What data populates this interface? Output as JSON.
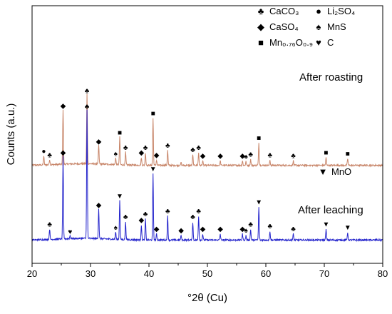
{
  "chart_data": {
    "type": "line",
    "title": "",
    "xlabel": "°2θ (Cu)",
    "ylabel": "Counts (a.u.)",
    "xlim": [
      20,
      80
    ],
    "xticks": [
      20,
      30,
      40,
      50,
      60,
      70,
      80
    ],
    "y_tick_labels_shown": false,
    "grid": false,
    "legend": {
      "placement": "top-right",
      "entries": [
        {
          "symbol": "club",
          "name": "CaCO₃"
        },
        {
          "symbol": "circle",
          "name": "Li₂SO₄"
        },
        {
          "symbol": "diamond",
          "name": "CaSO₄"
        },
        {
          "symbol": "spade",
          "name": "MnS"
        },
        {
          "symbol": "square",
          "name": "Mn₀.₇₆O₀.₉"
        },
        {
          "symbol": "heart",
          "name": "C"
        },
        {
          "symbol": "triangle-down",
          "name": "MnO"
        }
      ]
    },
    "series": [
      {
        "name": "After roasting",
        "color": "#c8866a",
        "baseline": 100,
        "peaks": [
          {
            "x": 22.0,
            "h": 12,
            "marker": "circle"
          },
          {
            "x": 23.0,
            "h": 7,
            "marker": "club"
          },
          {
            "x": 25.3,
            "h": 73,
            "marker": "diamond"
          },
          {
            "x": 29.4,
            "h": 93,
            "marker": "club"
          },
          {
            "x": 31.4,
            "h": 25,
            "marker": "diamond"
          },
          {
            "x": 34.3,
            "h": 9,
            "marker": "spade"
          },
          {
            "x": 35.0,
            "h": 37,
            "marker": "square"
          },
          {
            "x": 36.0,
            "h": 17,
            "marker": "club"
          },
          {
            "x": 38.7,
            "h": 10,
            "marker": "diamond"
          },
          {
            "x": 39.4,
            "h": 17,
            "marker": "club"
          },
          {
            "x": 40.7,
            "h": 63,
            "marker": "square"
          },
          {
            "x": 41.3,
            "h": 7,
            "marker": "diamond"
          },
          {
            "x": 43.2,
            "h": 20,
            "marker": "club"
          },
          {
            "x": 45.5,
            "h": 4,
            "marker": null
          },
          {
            "x": 47.5,
            "h": 14,
            "marker": "club"
          },
          {
            "x": 48.5,
            "h": 17,
            "marker": "club"
          },
          {
            "x": 49.2,
            "h": 6,
            "marker": "diamond"
          },
          {
            "x": 52.2,
            "h": 6,
            "marker": "diamond"
          },
          {
            "x": 56.0,
            "h": 6,
            "marker": "diamond"
          },
          {
            "x": 56.6,
            "h": 5,
            "marker": "spade"
          },
          {
            "x": 57.4,
            "h": 8,
            "marker": "club"
          },
          {
            "x": 58.8,
            "h": 30,
            "marker": "square"
          },
          {
            "x": 60.7,
            "h": 7,
            "marker": "club"
          },
          {
            "x": 64.7,
            "h": 6,
            "marker": "club"
          },
          {
            "x": 70.3,
            "h": 10,
            "marker": "square"
          },
          {
            "x": 74.0,
            "h": 9,
            "marker": "square"
          }
        ]
      },
      {
        "name": "After leaching",
        "color": "#2525cc",
        "baseline": 0,
        "peaks": [
          {
            "x": 23.0,
            "h": 14,
            "marker": "club"
          },
          {
            "x": 25.3,
            "h": 110,
            "marker": "diamond"
          },
          {
            "x": 26.5,
            "h": 4,
            "marker": "heart"
          },
          {
            "x": 29.4,
            "h": 172,
            "marker": "club"
          },
          {
            "x": 31.4,
            "h": 40,
            "marker": "diamond"
          },
          {
            "x": 34.3,
            "h": 10,
            "marker": "spade"
          },
          {
            "x": 35.0,
            "h": 52,
            "marker": "triangle-down"
          },
          {
            "x": 36.0,
            "h": 24,
            "marker": "club"
          },
          {
            "x": 38.7,
            "h": 20,
            "marker": "diamond"
          },
          {
            "x": 39.4,
            "h": 28,
            "marker": "club"
          },
          {
            "x": 40.7,
            "h": 88,
            "marker": "triangle-down"
          },
          {
            "x": 41.3,
            "h": 8,
            "marker": "diamond"
          },
          {
            "x": 43.2,
            "h": 32,
            "marker": "club"
          },
          {
            "x": 45.5,
            "h": 6,
            "marker": "diamond"
          },
          {
            "x": 47.5,
            "h": 24,
            "marker": "club"
          },
          {
            "x": 48.5,
            "h": 32,
            "marker": "club"
          },
          {
            "x": 49.2,
            "h": 8,
            "marker": "diamond"
          },
          {
            "x": 52.2,
            "h": 8,
            "marker": "diamond"
          },
          {
            "x": 56.0,
            "h": 8,
            "marker": "diamond"
          },
          {
            "x": 56.6,
            "h": 6,
            "marker": "spade"
          },
          {
            "x": 57.4,
            "h": 14,
            "marker": "club"
          },
          {
            "x": 58.8,
            "h": 44,
            "marker": "triangle-down"
          },
          {
            "x": 60.7,
            "h": 12,
            "marker": "club"
          },
          {
            "x": 64.7,
            "h": 8,
            "marker": "club"
          },
          {
            "x": 70.3,
            "h": 14,
            "marker": "triangle-down"
          },
          {
            "x": 74.0,
            "h": 10,
            "marker": "triangle-down"
          }
        ]
      }
    ]
  }
}
